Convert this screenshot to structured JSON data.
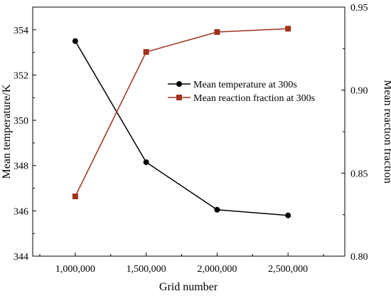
{
  "chart_data": {
    "type": "line",
    "xlabel": "Grid number",
    "ylabel_left": "Mean temperature/K",
    "ylabel_right": "Mean reaction fraction",
    "categories": [
      "1,000,000",
      "1,500,000",
      "2,000,000",
      "2,500,000"
    ],
    "x": [
      1000000,
      1500000,
      2000000,
      2500000
    ],
    "xlim": [
      700000,
      2900000
    ],
    "ylim_left": [
      344,
      355
    ],
    "ylim_right": [
      0.8,
      0.95
    ],
    "yticks_left": [
      "344",
      "346",
      "348",
      "350",
      "352",
      "354"
    ],
    "yticks_right": [
      "0.80",
      "0.85",
      "0.90",
      "0.95"
    ],
    "legend_position": "center-right",
    "grid": false,
    "series": [
      {
        "name": "Mean temperature at 300s",
        "axis": "left",
        "marker": "circle",
        "color": "#000000",
        "values": [
          353.5,
          348.15,
          346.05,
          345.8
        ]
      },
      {
        "name": "Mean reaction fraction at 300s",
        "axis": "right",
        "marker": "square",
        "color": "#A0321E",
        "values": [
          0.836,
          0.923,
          0.935,
          0.937
        ]
      }
    ]
  }
}
